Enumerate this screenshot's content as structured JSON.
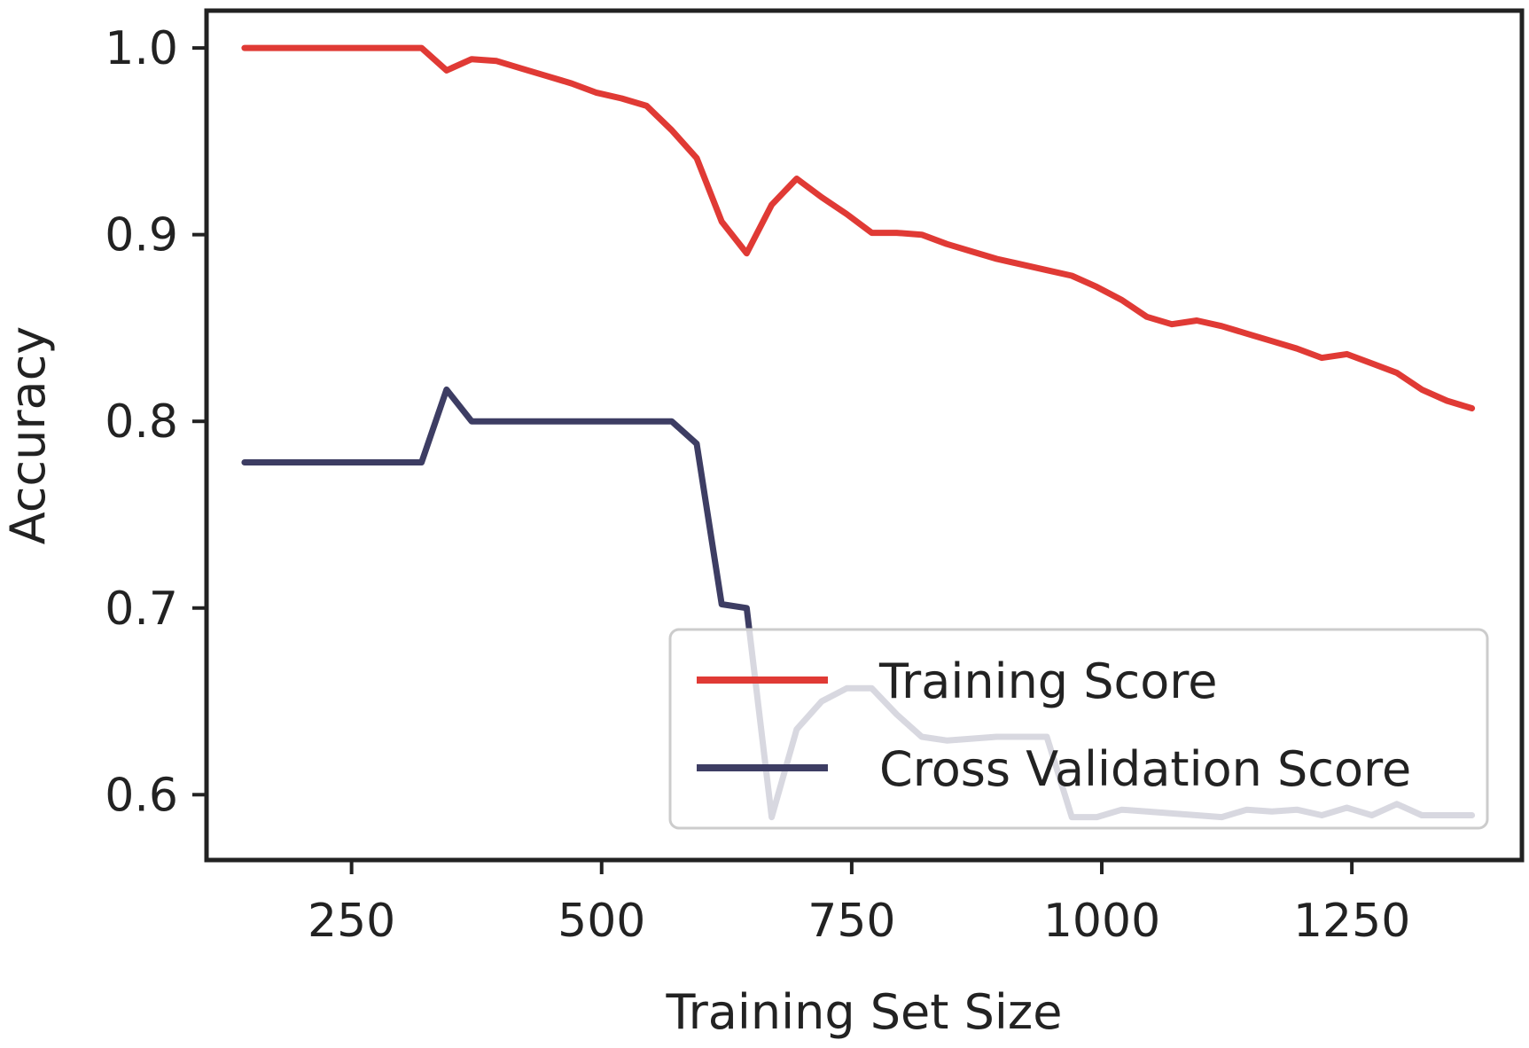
{
  "chart_data": {
    "type": "line",
    "title": "",
    "xlabel": "Training Set Size",
    "ylabel": "Accuracy",
    "xlim": [
      105,
      1420
    ],
    "ylim": [
      0.565,
      1.02
    ],
    "x_ticks": [
      250,
      500,
      750,
      1000,
      1250
    ],
    "x_tick_labels": [
      "250",
      "500",
      "750",
      "1000",
      "1250"
    ],
    "y_ticks": [
      0.6,
      0.7,
      0.8,
      0.9,
      1.0
    ],
    "y_tick_labels": [
      "0.6",
      "0.7",
      "0.8",
      "0.9",
      "1.0"
    ],
    "grid": false,
    "legend_position": "lower-right",
    "series": [
      {
        "name": "Training Score",
        "color": "#e03a35",
        "points": [
          [
            143,
            1.0
          ],
          [
            170,
            1.0
          ],
          [
            220,
            1.0
          ],
          [
            270,
            1.0
          ],
          [
            320,
            1.0
          ],
          [
            345,
            0.988
          ],
          [
            370,
            0.994
          ],
          [
            395,
            0.993
          ],
          [
            420,
            0.989
          ],
          [
            445,
            0.985
          ],
          [
            470,
            0.981
          ],
          [
            495,
            0.976
          ],
          [
            520,
            0.973
          ],
          [
            545,
            0.969
          ],
          [
            570,
            0.956
          ],
          [
            595,
            0.941
          ],
          [
            620,
            0.907
          ],
          [
            645,
            0.89
          ],
          [
            670,
            0.916
          ],
          [
            695,
            0.93
          ],
          [
            720,
            0.92
          ],
          [
            745,
            0.911
          ],
          [
            770,
            0.901
          ],
          [
            795,
            0.901
          ],
          [
            820,
            0.9
          ],
          [
            845,
            0.895
          ],
          [
            870,
            0.891
          ],
          [
            895,
            0.887
          ],
          [
            920,
            0.884
          ],
          [
            945,
            0.881
          ],
          [
            970,
            0.878
          ],
          [
            995,
            0.872
          ],
          [
            1020,
            0.865
          ],
          [
            1045,
            0.856
          ],
          [
            1070,
            0.852
          ],
          [
            1095,
            0.854
          ],
          [
            1120,
            0.851
          ],
          [
            1145,
            0.847
          ],
          [
            1170,
            0.843
          ],
          [
            1195,
            0.839
          ],
          [
            1220,
            0.834
          ],
          [
            1245,
            0.836
          ],
          [
            1270,
            0.831
          ],
          [
            1295,
            0.826
          ],
          [
            1320,
            0.817
          ],
          [
            1345,
            0.811
          ],
          [
            1370,
            0.807
          ]
        ]
      },
      {
        "name": "Cross Validation Score",
        "color": "#3d3d63",
        "points": [
          [
            143,
            0.778
          ],
          [
            320,
            0.778
          ],
          [
            345,
            0.817
          ],
          [
            370,
            0.8
          ],
          [
            400,
            0.8
          ],
          [
            450,
            0.8
          ],
          [
            500,
            0.8
          ],
          [
            545,
            0.8
          ],
          [
            570,
            0.8
          ],
          [
            595,
            0.788
          ],
          [
            620,
            0.702
          ],
          [
            645,
            0.7
          ],
          [
            670,
            0.588
          ],
          [
            695,
            0.635
          ],
          [
            720,
            0.65
          ],
          [
            745,
            0.657
          ],
          [
            770,
            0.657
          ],
          [
            795,
            0.643
          ],
          [
            820,
            0.631
          ],
          [
            845,
            0.629
          ],
          [
            870,
            0.63
          ],
          [
            895,
            0.631
          ],
          [
            920,
            0.631
          ],
          [
            945,
            0.631
          ],
          [
            970,
            0.588
          ],
          [
            995,
            0.588
          ],
          [
            1020,
            0.592
          ],
          [
            1045,
            0.591
          ],
          [
            1070,
            0.59
          ],
          [
            1095,
            0.589
          ],
          [
            1120,
            0.588
          ],
          [
            1145,
            0.592
          ],
          [
            1170,
            0.591
          ],
          [
            1195,
            0.592
          ],
          [
            1220,
            0.589
          ],
          [
            1245,
            0.593
          ],
          [
            1270,
            0.589
          ],
          [
            1295,
            0.595
          ],
          [
            1320,
            0.589
          ],
          [
            1345,
            0.589
          ],
          [
            1370,
            0.589
          ]
        ]
      }
    ]
  }
}
